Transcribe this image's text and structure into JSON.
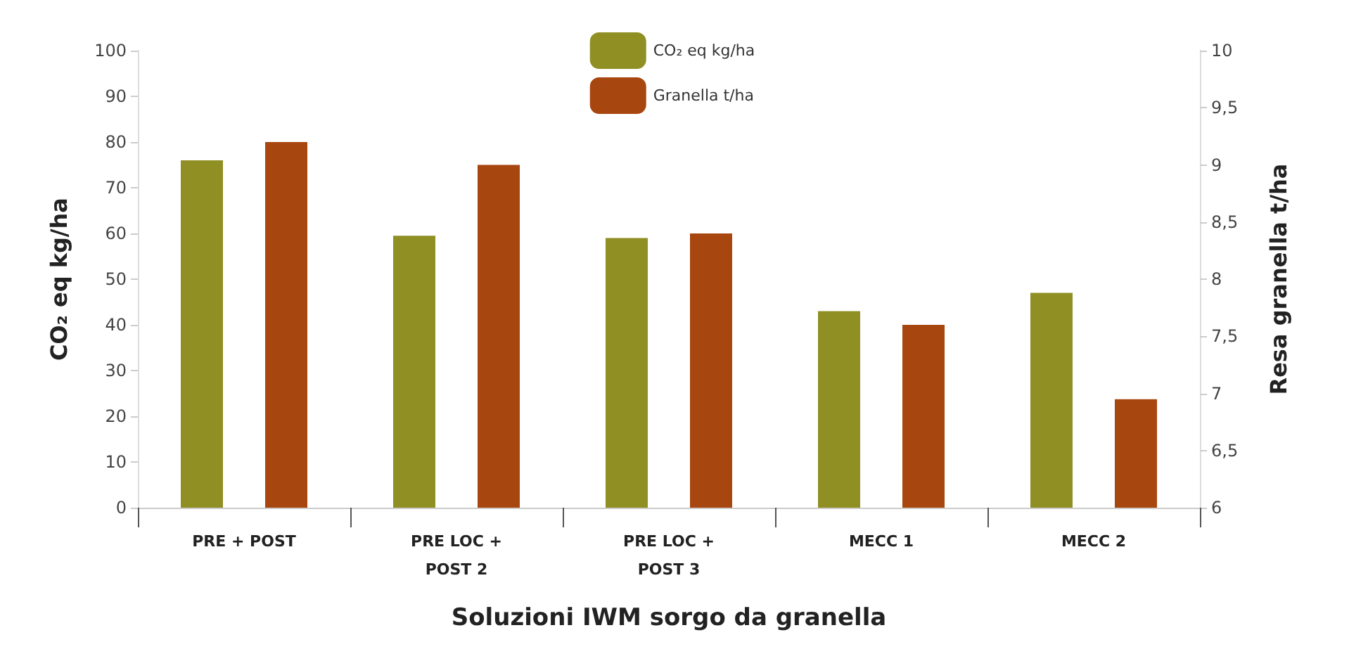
{
  "chart_data": {
    "type": "bar",
    "xlabel": "Soluzioni IWM sorgo da granella",
    "ylabel": "CO₂ eq kg/ha",
    "y2label": "Resa granella t/ha",
    "categories": [
      "PRE + POST",
      "PRE LOC +\nPOST 2",
      "PRE LOC +\nPOST 3",
      "MECC 1",
      "MECC 2"
    ],
    "series": [
      {
        "name": "CO₂ eq kg/ha",
        "color": "#8f8f24",
        "values": [
          76,
          59.5,
          59,
          43,
          47
        ]
      },
      {
        "name": "Granella t/ha",
        "color": "#a8460f",
        "axis": "y2",
        "values": [
          9.2,
          9.0,
          8.4,
          7.6,
          6.95
        ]
      }
    ],
    "ylim": [
      0,
      100
    ],
    "yticks": [
      0,
      10,
      20,
      30,
      40,
      50,
      60,
      70,
      80,
      90,
      100
    ],
    "y2lim": [
      6,
      10
    ],
    "y2ticks": [
      6,
      {
        "value": 6.5,
        "label": "6,5"
      },
      7,
      {
        "value": 7.5,
        "label": "7,5"
      },
      8,
      {
        "value": 8.5,
        "label": "8,5"
      },
      9,
      {
        "value": 9.5,
        "label": "9,5"
      },
      10
    ],
    "grid": false,
    "legend": "top"
  }
}
